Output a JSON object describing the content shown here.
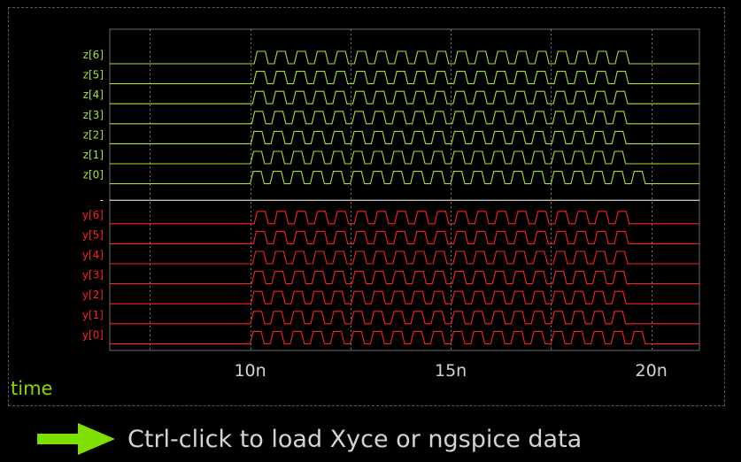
{
  "chart_data": {
    "type": "line",
    "title": "",
    "xlabel": "time",
    "xlim": [
      6.5,
      21.2
    ],
    "xticks": [
      10,
      15,
      20
    ],
    "xtick_labels": [
      "10n",
      "15n",
      "20n"
    ],
    "grid": true,
    "divider_label": "-",
    "signal": {
      "start": 10.0,
      "period": 0.5,
      "end": 20.0,
      "duty": 0.55,
      "rise_fraction": 0.15
    },
    "groups": [
      {
        "color": "#a6e22e",
        "series": [
          {
            "name": "z[6]",
            "phase": 0.1
          },
          {
            "name": "z[5]",
            "phase": 0.08
          },
          {
            "name": "z[4]",
            "phase": 0.06
          },
          {
            "name": "z[3]",
            "phase": 0.04
          },
          {
            "name": "z[2]",
            "phase": 0.02
          },
          {
            "name": "z[1]",
            "phase": 0.01
          },
          {
            "name": "z[0]",
            "phase": 0.0
          }
        ]
      },
      {
        "color": "#ff2020",
        "series": [
          {
            "name": "y[6]",
            "phase": 0.1
          },
          {
            "name": "y[5]",
            "phase": 0.08
          },
          {
            "name": "y[4]",
            "phase": 0.06
          },
          {
            "name": "y[3]",
            "phase": 0.04
          },
          {
            "name": "y[2]",
            "phase": 0.02
          },
          {
            "name": "y[1]",
            "phase": 0.01
          },
          {
            "name": "y[0]",
            "phase": 0.0
          }
        ]
      }
    ]
  },
  "hint": {
    "text": "Ctrl-click to load Xyce or ngspice data",
    "arrow_color": "#7fe000",
    "text_color": "#d4d4d4"
  },
  "colors": {
    "background": "#000000",
    "grid": "#777777",
    "axis": "#6a6a6a",
    "tick_text": "#d4d4d4",
    "divider": "#ffffff"
  }
}
